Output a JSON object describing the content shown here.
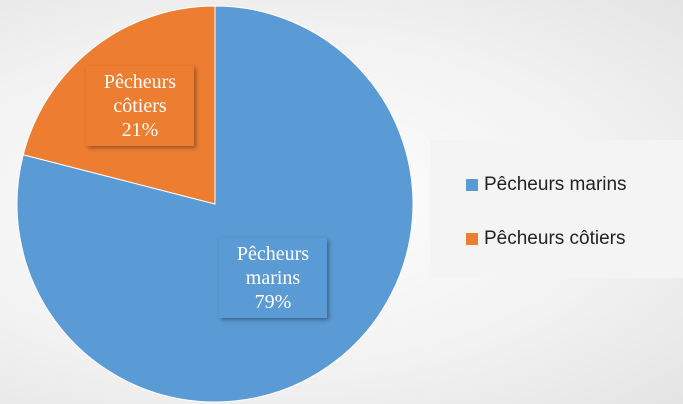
{
  "chart_data": {
    "type": "pie",
    "categories": [
      "Pêcheurs marins",
      "Pêcheurs côtiers"
    ],
    "values": [
      79,
      21
    ],
    "value_labels": [
      "79%",
      "21%"
    ],
    "colors": [
      "#5b9bd5",
      "#ed7d31"
    ],
    "legend": "right"
  }
}
